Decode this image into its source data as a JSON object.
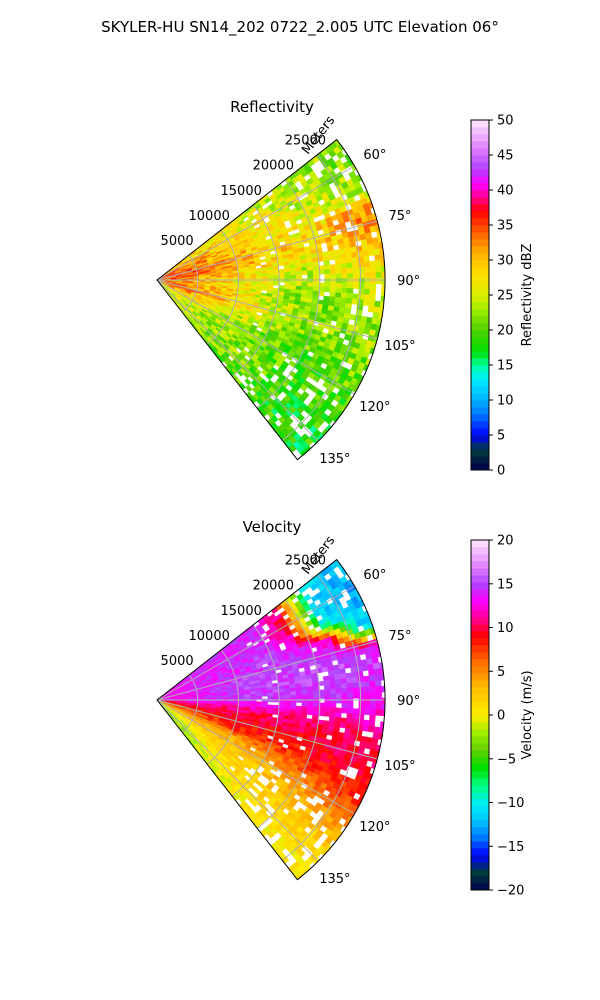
{
  "figure": {
    "title": "SKYLER-HU  SN14_202  0722_2.005 UTC Elevation 06°"
  },
  "chart_data": [
    {
      "type": "heatmap",
      "subtype": "polar-sector",
      "title": "Reflectivity",
      "radial_label": "Meters",
      "radial_ticks": [
        "5000",
        "10000",
        "15000",
        "20000",
        "25000"
      ],
      "radial_tick_values": [
        5000,
        10000,
        15000,
        20000,
        25000
      ],
      "radial_max": 28000,
      "angle_ticks": [
        "60°",
        "75°",
        "90°",
        "105°",
        "120°",
        "135°"
      ],
      "angle_tick_values": [
        60,
        75,
        90,
        105,
        120,
        135
      ],
      "angle_range": [
        52,
        142
      ],
      "grid": true,
      "colorbar": {
        "label": "Reflectivity dBZ",
        "min": 0,
        "max": 50,
        "ticks": [
          "0",
          "5",
          "10",
          "15",
          "20",
          "25",
          "30",
          "35",
          "40",
          "45",
          "50"
        ],
        "tick_values": [
          0,
          5,
          10,
          15,
          20,
          25,
          30,
          35,
          40,
          45,
          50
        ],
        "stops": [
          {
            "v": 0,
            "c": "#00004c"
          },
          {
            "v": 3,
            "c": "#003c3c"
          },
          {
            "v": 5,
            "c": "#0000ff"
          },
          {
            "v": 8,
            "c": "#0078ff"
          },
          {
            "v": 10,
            "c": "#00b0ff"
          },
          {
            "v": 13,
            "c": "#00f0ff"
          },
          {
            "v": 15,
            "c": "#00ffa0"
          },
          {
            "v": 17,
            "c": "#00e000"
          },
          {
            "v": 20,
            "c": "#50d000"
          },
          {
            "v": 23,
            "c": "#a0f000"
          },
          {
            "v": 25,
            "c": "#ddee00"
          },
          {
            "v": 28,
            "c": "#ffe000"
          },
          {
            "v": 31,
            "c": "#ffb000"
          },
          {
            "v": 34,
            "c": "#ff6000"
          },
          {
            "v": 37,
            "c": "#ff0000"
          },
          {
            "v": 39,
            "c": "#ff0090"
          },
          {
            "v": 41,
            "c": "#ff00ff"
          },
          {
            "v": 43,
            "c": "#b040ff"
          },
          {
            "v": 46,
            "c": "#e080ff"
          },
          {
            "v": 50,
            "c": "#ffe8ff"
          }
        ]
      },
      "field": {
        "description_of_pattern": "strong 30-38 dBZ near radar and along ~80°, ~22-25 dBZ elsewhere, lower toward 120-140°",
        "rays_deg": [
          55,
          60,
          65,
          70,
          75,
          80,
          85,
          90,
          95,
          100,
          105,
          110,
          115,
          120,
          125,
          130,
          135,
          140
        ],
        "range_bins_m": [
          2000,
          6000,
          10000,
          14000,
          18000,
          22000,
          26000
        ],
        "values_dbz": [
          [
            30,
            28,
            26,
            25,
            24,
            23,
            22
          ],
          [
            32,
            30,
            28,
            27,
            25,
            24,
            22
          ],
          [
            34,
            31,
            29,
            27,
            26,
            25,
            23
          ],
          [
            35,
            32,
            30,
            28,
            27,
            29,
            31
          ],
          [
            36,
            33,
            31,
            29,
            28,
            30,
            32
          ],
          [
            35,
            33,
            30,
            28,
            27,
            28,
            30
          ],
          [
            34,
            31,
            28,
            26,
            25,
            26,
            27
          ],
          [
            33,
            30,
            27,
            25,
            24,
            24,
            25
          ],
          [
            33,
            30,
            27,
            24,
            22,
            22,
            24
          ],
          [
            33,
            31,
            28,
            24,
            22,
            21,
            23
          ],
          [
            34,
            32,
            29,
            26,
            23,
            22,
            23
          ],
          [
            33,
            30,
            27,
            24,
            22,
            21,
            22
          ],
          [
            31,
            27,
            24,
            22,
            20,
            20,
            21
          ],
          [
            29,
            25,
            23,
            21,
            20,
            19,
            20
          ],
          [
            27,
            24,
            22,
            21,
            20,
            19,
            19
          ],
          [
            26,
            23,
            22,
            21,
            20,
            19,
            19
          ],
          [
            25,
            23,
            22,
            21,
            20,
            19,
            18
          ],
          [
            24,
            22,
            21,
            20,
            19,
            18,
            18
          ]
        ]
      }
    },
    {
      "type": "heatmap",
      "subtype": "polar-sector",
      "title": "Velocity",
      "radial_label": "Meters",
      "radial_ticks": [
        "5000",
        "10000",
        "15000",
        "20000",
        "25000"
      ],
      "radial_tick_values": [
        5000,
        10000,
        15000,
        20000,
        25000
      ],
      "radial_max": 28000,
      "angle_ticks": [
        "60°",
        "75°",
        "90°",
        "105°",
        "120°",
        "135°"
      ],
      "angle_tick_values": [
        60,
        75,
        90,
        105,
        120,
        135
      ],
      "angle_range": [
        52,
        142
      ],
      "grid": true,
      "colorbar": {
        "label": "Velocity (m/s)",
        "min": -20,
        "max": 20,
        "ticks": [
          "−20",
          "−15",
          "−10",
          "−5",
          "0",
          "5",
          "10",
          "15",
          "20"
        ],
        "tick_values": [
          -20,
          -15,
          -10,
          -5,
          0,
          5,
          10,
          15,
          20
        ],
        "stops": [
          {
            "v": -20,
            "c": "#00004c"
          },
          {
            "v": -18,
            "c": "#003c3c"
          },
          {
            "v": -16,
            "c": "#0000ff"
          },
          {
            "v": -14,
            "c": "#0078ff"
          },
          {
            "v": -12,
            "c": "#00c8ff"
          },
          {
            "v": -10,
            "c": "#00f0f0"
          },
          {
            "v": -8,
            "c": "#00ff80"
          },
          {
            "v": -6,
            "c": "#00e000"
          },
          {
            "v": -4,
            "c": "#60d000"
          },
          {
            "v": -2,
            "c": "#a0f000"
          },
          {
            "v": 0,
            "c": "#ffee00"
          },
          {
            "v": 3,
            "c": "#ffc000"
          },
          {
            "v": 6,
            "c": "#ff7000"
          },
          {
            "v": 9,
            "c": "#ff0000"
          },
          {
            "v": 11,
            "c": "#ff0090"
          },
          {
            "v": 13,
            "c": "#ff00ff"
          },
          {
            "v": 15,
            "c": "#b040ff"
          },
          {
            "v": 17,
            "c": "#e080ff"
          },
          {
            "v": 20,
            "c": "#ffe8ff"
          }
        ]
      },
      "field": {
        "description_of_pattern": "outbound 12-16 m/s north of ~93°, inbound to -13 m/s in far 55-75°, red/orange band 95-110°, yellow near 0 toward 130-140°",
        "rays_deg": [
          55,
          60,
          65,
          70,
          75,
          80,
          85,
          90,
          95,
          100,
          105,
          110,
          115,
          120,
          125,
          130,
          135,
          140
        ],
        "range_bins_m": [
          2000,
          6000,
          10000,
          14000,
          18000,
          22000,
          26000
        ],
        "values_ms": [
          [
            13,
            14,
            14,
            14,
            10,
            -11,
            -12
          ],
          [
            13,
            14,
            14,
            14,
            9,
            -11,
            -13
          ],
          [
            13,
            14,
            14,
            15,
            12,
            -10,
            -12
          ],
          [
            13,
            14,
            14,
            15,
            14,
            12,
            -11
          ],
          [
            13,
            14,
            15,
            15,
            15,
            14,
            13
          ],
          [
            13,
            14,
            15,
            15,
            15,
            16,
            15
          ],
          [
            13,
            14,
            15,
            15,
            15,
            15,
            14
          ],
          [
            13,
            14,
            14,
            14,
            14,
            14,
            13
          ],
          [
            10,
            11,
            11,
            11,
            11,
            11,
            12
          ],
          [
            9,
            10,
            10,
            10,
            10,
            10,
            10
          ],
          [
            7,
            8,
            9,
            9,
            9,
            10,
            10
          ],
          [
            6,
            7,
            8,
            8,
            8,
            9,
            9
          ],
          [
            4,
            4,
            4,
            5,
            6,
            7,
            8
          ],
          [
            2,
            3,
            3,
            3,
            4,
            5,
            6
          ],
          [
            0,
            1,
            2,
            2,
            3,
            3,
            4
          ],
          [
            -1,
            0,
            1,
            2,
            2,
            2,
            2
          ],
          [
            -2,
            -1,
            0,
            1,
            1,
            1,
            1
          ],
          [
            -3,
            -2,
            -1,
            0,
            0,
            0,
            0
          ]
        ]
      }
    }
  ]
}
